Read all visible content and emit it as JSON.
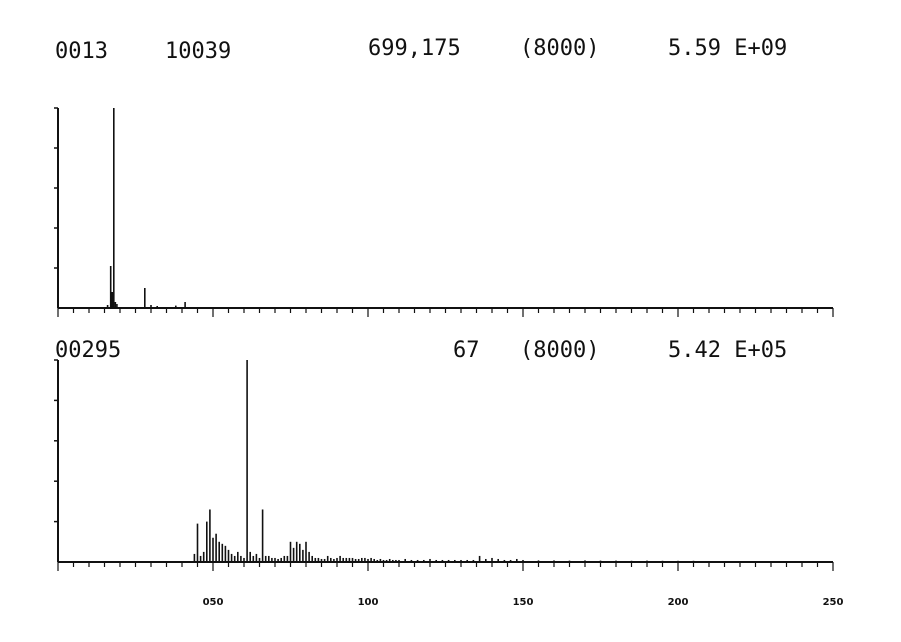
{
  "top_header": {
    "scan": "0013",
    "count": "10039",
    "value": "699,175",
    "range": "(8000)",
    "intensity": "5.59 E+09"
  },
  "bottom_header": {
    "scan": "00295",
    "value": "67",
    "range": "(8000)",
    "intensity": "5.42 E+05"
  },
  "chart_data": [
    {
      "type": "bar",
      "panel": "top",
      "xlim": [
        0,
        250
      ],
      "ylim": [
        0,
        100
      ],
      "y_ticks": 5,
      "x": [
        16,
        17,
        17.5,
        18,
        18.5,
        19,
        28,
        30,
        32,
        38,
        41
      ],
      "values": [
        1.5,
        21,
        8,
        100,
        3,
        2,
        10,
        1.5,
        1,
        1.2,
        3
      ]
    },
    {
      "type": "bar",
      "panel": "bottom",
      "xlim": [
        0,
        250
      ],
      "ylim": [
        0,
        100
      ],
      "y_ticks": 5,
      "x_tick_labels": [
        "050",
        "100",
        "150",
        "200",
        "250"
      ],
      "x": [
        44,
        45,
        46,
        47,
        48,
        49,
        50,
        51,
        52,
        53,
        54,
        55,
        56,
        57,
        58,
        59,
        60,
        61,
        62,
        63,
        64,
        65,
        66,
        67,
        68,
        69,
        70,
        71,
        72,
        73,
        74,
        75,
        76,
        77,
        78,
        79,
        80,
        81,
        82,
        83,
        84,
        85,
        86,
        87,
        88,
        89,
        90,
        91,
        92,
        93,
        94,
        95,
        96,
        97,
        98,
        99,
        100,
        101,
        102,
        103,
        104,
        105,
        106,
        107,
        108,
        109,
        110,
        112,
        114,
        116,
        118,
        120,
        122,
        124,
        126,
        128,
        130,
        132,
        134,
        136,
        138,
        140,
        142,
        144,
        146,
        148,
        150,
        155,
        160,
        165,
        170,
        175,
        180,
        185,
        190,
        195,
        200,
        205,
        210,
        215,
        220
      ],
      "values": [
        4,
        19,
        3,
        5,
        20,
        26,
        12,
        14,
        10,
        9,
        8,
        6,
        4,
        3,
        5,
        3,
        2,
        100,
        5,
        3,
        4,
        2,
        26,
        3,
        3,
        2,
        2,
        1.5,
        2,
        3,
        3,
        10,
        7,
        10,
        9,
        6,
        10,
        5,
        3,
        2,
        2,
        1.5,
        1.5,
        3,
        2,
        1.5,
        2,
        3,
        2,
        2,
        2,
        2,
        1.5,
        1.5,
        2,
        2,
        1.5,
        2,
        1.5,
        1,
        1.5,
        1,
        1,
        1.5,
        1,
        1,
        1,
        1.5,
        1,
        1,
        1,
        1.5,
        1,
        1,
        1,
        1,
        1,
        1,
        1,
        3,
        1.5,
        2,
        1.5,
        1,
        1,
        1.5,
        1,
        0.8,
        0.8,
        0.7,
        0.8,
        0.7,
        0.7,
        0.6,
        0.7,
        0.6,
        0.6,
        0.6,
        0.5,
        0.5,
        0.5
      ]
    }
  ]
}
